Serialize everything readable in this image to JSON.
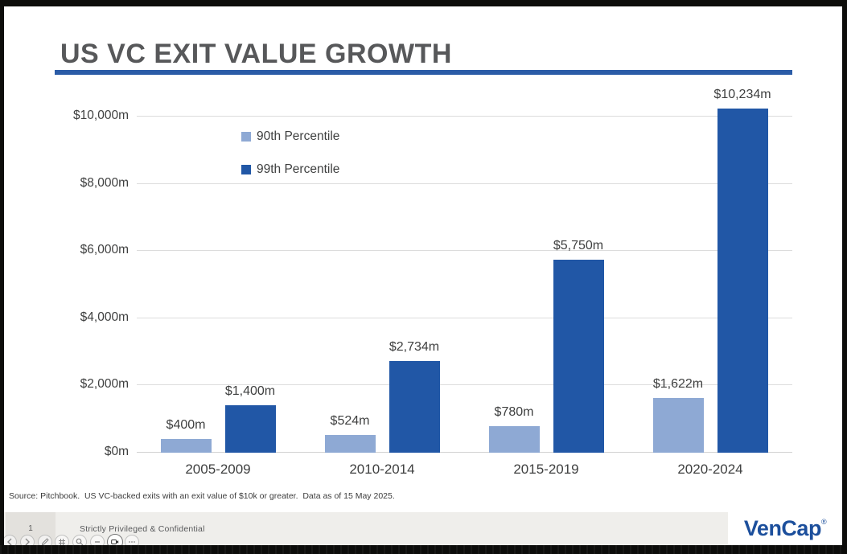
{
  "slide": {
    "title": "US VC EXIT VALUE GROWTH",
    "source_note": "Source: Pitchbook.  US VC-backed exits with an exit value of $10k or greater.  Data as of 15 May 2025."
  },
  "footer": {
    "page_number": "1",
    "classification": "Strictly Privileged & Confidential",
    "logo_text": "VenCap",
    "logo_mark": "®"
  },
  "colors": {
    "accent_rule": "#2b5ca7",
    "series_90th": "#8ea9d4",
    "series_99th": "#2157a6",
    "logo_blue": "#1c4f9c",
    "gridline": "#dcdcdc",
    "baseline": "#d2d2d2",
    "title_gray": "#57585a"
  },
  "chart_data": {
    "type": "bar",
    "title": "US VC EXIT VALUE GROWTH",
    "categories": [
      "2005-2009",
      "2010-2014",
      "2015-2019",
      "2020-2024"
    ],
    "series": [
      {
        "name": "90th Percentile",
        "color": "#8ea9d4",
        "values": [
          400,
          524,
          780,
          1622
        ],
        "data_labels": [
          "$400m",
          "$524m",
          "$780m",
          "$1,622m"
        ]
      },
      {
        "name": "99th Percentile",
        "color": "#2157a6",
        "values": [
          1400,
          2734,
          5750,
          10234
        ],
        "data_labels": [
          "$1,400m",
          "$2,734m",
          "$5,750m",
          "$10,234m"
        ]
      }
    ],
    "y_axis": {
      "min": 0,
      "max": 10000,
      "step": 2000,
      "unit": "$m",
      "tick_labels": [
        "$0m",
        "$2,000m",
        "$4,000m",
        "$6,000m",
        "$8,000m",
        "$10,000m"
      ]
    },
    "grid": true,
    "legend": {
      "position": "inside-top-left",
      "entries": [
        "90th Percentile",
        "99th Percentile"
      ]
    },
    "xlabel": "",
    "ylabel": ""
  },
  "overlay_toolbar": {
    "buttons": [
      {
        "name": "previous"
      },
      {
        "name": "next"
      },
      {
        "name": "pen"
      },
      {
        "name": "grid"
      },
      {
        "name": "zoom"
      },
      {
        "name": "minimize"
      },
      {
        "name": "camera"
      },
      {
        "name": "more"
      }
    ]
  }
}
